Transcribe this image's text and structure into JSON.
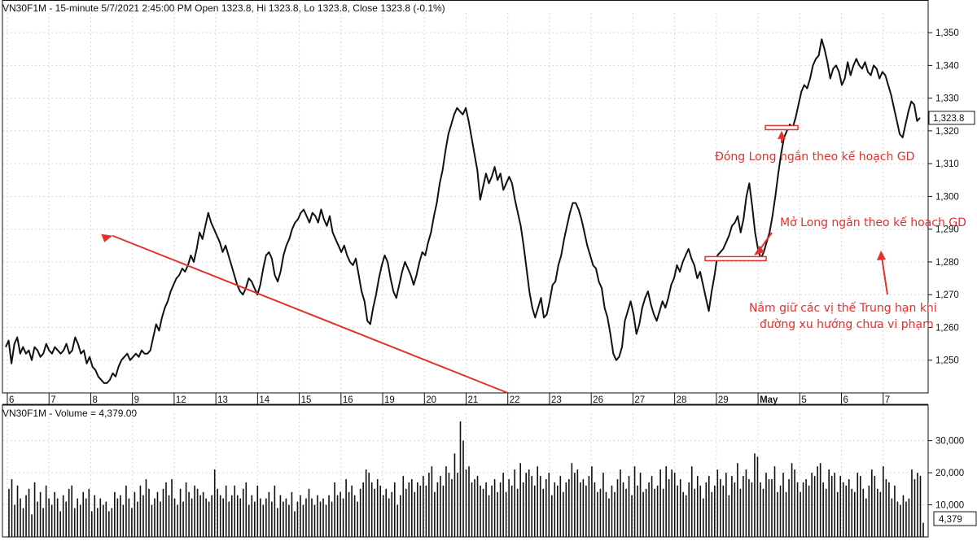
{
  "header": {
    "price_title": "VN30F1M - 15-minute 5/7/2021 2:45:00 PM Open 1323.8, Hi 1323.8, Lo 1323.8, Close 1323.8 (-0.1%)",
    "volume_title": "VN30F1M - Volume = 4,379.00"
  },
  "colors": {
    "price_line": "#111111",
    "annotation": "#e0322e",
    "grid": "#d8d8d8",
    "bars": "#111111"
  },
  "chart_data": [
    {
      "type": "line",
      "series": [
        {
          "values": [
            1254,
            1256,
            1249,
            1255,
            1257,
            1252,
            1254,
            1252,
            1253,
            1250,
            1254,
            1253,
            1251,
            1252,
            1255,
            1253,
            1252,
            1254,
            1253,
            1252,
            1253,
            1255,
            1252,
            1253,
            1257,
            1255,
            1252,
            1253,
            1249,
            1251,
            1248,
            1247,
            1245,
            1244,
            1243,
            1243,
            1244,
            1246,
            1245,
            1248,
            1250,
            1251,
            1252,
            1250,
            1251,
            1252,
            1251,
            1253,
            1252,
            1252,
            1253,
            1257,
            1261,
            1259,
            1263,
            1266,
            1268,
            1271,
            1273,
            1275,
            1276,
            1278,
            1277,
            1279,
            1282,
            1280,
            1284,
            1289,
            1287,
            1291,
            1295,
            1292,
            1290,
            1288,
            1286,
            1283,
            1285,
            1282,
            1279,
            1276,
            1273,
            1271,
            1270,
            1272,
            1275,
            1274,
            1272,
            1270,
            1273,
            1278,
            1282,
            1283,
            1281,
            1276,
            1274,
            1277,
            1282,
            1285,
            1287,
            1290,
            1292,
            1293,
            1295,
            1296,
            1294,
            1292,
            1295,
            1294,
            1292,
            1296,
            1293,
            1291,
            1294,
            1289,
            1287,
            1285,
            1283,
            1285,
            1282,
            1280,
            1279,
            1281,
            1276,
            1271,
            1268,
            1262,
            1261,
            1266,
            1270,
            1275,
            1279,
            1282,
            1280,
            1275,
            1271,
            1269,
            1273,
            1277,
            1280,
            1278,
            1276,
            1273,
            1276,
            1280,
            1283,
            1282,
            1286,
            1289,
            1294,
            1298,
            1304,
            1308,
            1314,
            1319,
            1322,
            1325,
            1327,
            1326,
            1325,
            1327,
            1323,
            1318,
            1313,
            1308,
            1299,
            1303,
            1307,
            1304,
            1306,
            1309,
            1305,
            1307,
            1302,
            1304,
            1306,
            1304,
            1299,
            1295,
            1291,
            1285,
            1278,
            1271,
            1266,
            1263,
            1266,
            1269,
            1263,
            1264,
            1268,
            1273,
            1274,
            1279,
            1282,
            1287,
            1291,
            1295,
            1298,
            1298,
            1296,
            1293,
            1289,
            1285,
            1282,
            1279,
            1278,
            1274,
            1272,
            1266,
            1263,
            1258,
            1252,
            1250,
            1251,
            1254,
            1262,
            1265,
            1268,
            1264,
            1258,
            1261,
            1266,
            1269,
            1271,
            1267,
            1264,
            1262,
            1265,
            1268,
            1266,
            1269,
            1273,
            1275,
            1279,
            1277,
            1280,
            1282,
            1284,
            1281,
            1279,
            1275,
            1277,
            1273,
            1269,
            1265,
            1271,
            1276,
            1282,
            1283,
            1284,
            1286,
            1288,
            1291,
            1292,
            1294,
            1289,
            1293,
            1300,
            1304,
            1297,
            1289,
            1284,
            1281,
            1283,
            1286,
            1289,
            1294,
            1300,
            1307,
            1313,
            1318,
            1320,
            1322,
            1321,
            1324,
            1328,
            1332,
            1334,
            1333,
            1336,
            1340,
            1342,
            1343,
            1348,
            1345,
            1341,
            1336,
            1339,
            1340,
            1338,
            1334,
            1336,
            1341,
            1337,
            1340,
            1342,
            1340,
            1339,
            1341,
            1338,
            1337,
            1340,
            1339,
            1336,
            1338,
            1337,
            1334,
            1331,
            1327,
            1323,
            1319,
            1318,
            1322,
            1326,
            1329,
            1328,
            1323,
            1324
          ]
        }
      ],
      "xlabels": [
        "6",
        "7",
        "8",
        "9",
        "12",
        "13",
        "14",
        "15",
        "16",
        "19",
        "20",
        "21",
        "22",
        "23",
        "26",
        "27",
        "28",
        "29",
        "May",
        "5",
        "6",
        "7"
      ],
      "ylim": [
        1240,
        1355
      ],
      "yticks": [
        "1,250",
        "1,260",
        "1,270",
        "1,280",
        "1,290",
        "1,300",
        "1,310",
        "1,320",
        "1,330",
        "1,340",
        "1,350"
      ],
      "last_value_label": "1,323.8",
      "annotations": [
        {
          "text": "Đóng Long ngắn theo kế hoạch GD"
        },
        {
          "text": "Mở Long ngắn theo kế hoạch GD"
        },
        {
          "text": "Nắm giữ các vị thế Trung hạn khi"
        },
        {
          "text": "đường xu hướng chưa vi phạm"
        }
      ],
      "close_level": 1321,
      "open_level": 1281,
      "trendline": {
        "start": [
          "22",
          1240
        ],
        "end": [
          "7",
          1288
        ]
      }
    },
    {
      "type": "bar",
      "series": [
        {
          "values": [
            15000,
            18000,
            10000,
            16000,
            12000,
            9000,
            13000,
            15000,
            7000,
            17000,
            11000,
            14000,
            9000,
            16000,
            12000,
            10000,
            14000,
            12000,
            8000,
            13000,
            11000,
            15000,
            16000,
            9000,
            12000,
            10000,
            14000,
            12000,
            15000,
            8000,
            13000,
            9000,
            12000,
            10000,
            11000,
            8000,
            9000,
            14000,
            12000,
            13000,
            10000,
            16000,
            12000,
            9000,
            14000,
            11000,
            16000,
            13000,
            18000,
            15000,
            10000,
            12000,
            14000,
            11000,
            15000,
            17000,
            13000,
            18000,
            12000,
            10000,
            15000,
            11000,
            17000,
            14000,
            12000,
            16000,
            15000,
            13000,
            14000,
            12000,
            11000,
            13000,
            21000,
            15000,
            13000,
            12000,
            16000,
            11000,
            13000,
            16000,
            13000,
            12000,
            15000,
            17000,
            10000,
            13000,
            11000,
            16000,
            12000,
            10000,
            12000,
            14000,
            11000,
            16000,
            9000,
            13000,
            11000,
            12000,
            10000,
            14000,
            8000,
            11000,
            13000,
            10000,
            12000,
            15000,
            12000,
            10000,
            13000,
            11000,
            12000,
            10000,
            13000,
            11000,
            17000,
            13000,
            14000,
            12000,
            18000,
            14000,
            16000,
            13000,
            11000,
            15000,
            17000,
            21000,
            20000,
            17000,
            15000,
            18000,
            16000,
            13000,
            15000,
            12000,
            14000,
            17000,
            10000,
            13000,
            19000,
            15000,
            17000,
            18000,
            14000,
            17000,
            16000,
            19000,
            16000,
            20000,
            22000,
            14000,
            17000,
            19000,
            16000,
            22000,
            20000,
            18000,
            26000,
            20000,
            36000,
            30000,
            21000,
            22000,
            17000,
            18000,
            19000,
            16000,
            15000,
            17000,
            13000,
            16000,
            18000,
            14000,
            17000,
            20000,
            14000,
            18000,
            16000,
            21000,
            15000,
            23000,
            17000,
            20000,
            21000,
            19000,
            16000,
            22000,
            19000,
            15000,
            18000,
            20000,
            13000,
            17000,
            16000,
            19000,
            14000,
            17000,
            18000,
            23000,
            20000,
            21000,
            17000,
            18000,
            16000,
            19000,
            22000,
            17000,
            14000,
            15000,
            20000,
            14000,
            12000,
            16000,
            14000,
            18000,
            21000,
            17000,
            15000,
            19000,
            13000,
            22000,
            16000,
            20000,
            14000,
            15000,
            17000,
            19000,
            15000,
            16000,
            21000,
            15000,
            22000,
            18000,
            21000,
            20000,
            16000,
            18000,
            14000,
            13000,
            17000,
            22000,
            15000,
            19000,
            16000,
            12000,
            17000,
            19000,
            14000,
            16000,
            21000,
            18000,
            16000,
            20000,
            13000,
            19000,
            17000,
            23000,
            15000,
            19000,
            21000,
            18000,
            17000,
            26000,
            25000,
            17000,
            15000,
            20000,
            18000,
            18000,
            22000,
            14000,
            16000,
            20000,
            14000,
            18000,
            23000,
            21000,
            17000,
            14000,
            17000,
            18000,
            16000,
            20000,
            19000,
            22000,
            23000,
            17000,
            15000,
            21000,
            19000,
            20000,
            14000,
            19000,
            17000,
            16000,
            18000,
            15000,
            14000,
            20000,
            19000,
            15000,
            12000,
            16000,
            21000,
            19000,
            15000,
            14000,
            22000,
            18000,
            17000,
            12000,
            16000,
            11000,
            10000,
            13000,
            11000,
            12000,
            21000,
            18000,
            20000,
            19000,
            4400
          ]
        }
      ],
      "ylim": [
        0,
        37000
      ],
      "yticks": [
        "10,000",
        "20,000",
        "30,000"
      ],
      "last_value_label": "4,379"
    }
  ]
}
